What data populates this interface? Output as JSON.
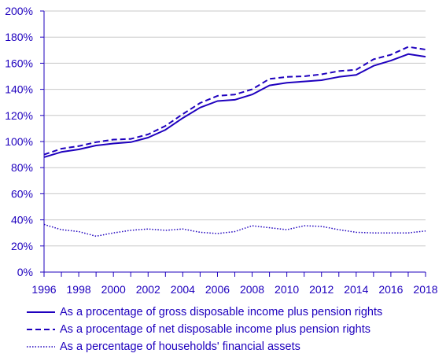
{
  "chart_data": {
    "type": "line",
    "x": [
      1996,
      1997,
      1998,
      1999,
      2000,
      2001,
      2002,
      2003,
      2004,
      2005,
      2006,
      2007,
      2008,
      2009,
      2010,
      2011,
      2012,
      2013,
      2014,
      2015,
      2016,
      2017,
      2018
    ],
    "series": [
      {
        "name": "As a procentage of gross disposable income plus pension rights",
        "style": "solid",
        "values": [
          88,
          92,
          94,
          97,
          98.5,
          99.5,
          103,
          109,
          118,
          126,
          131,
          132,
          136,
          143,
          145,
          146,
          147,
          149.5,
          151,
          158,
          162,
          167,
          165
        ]
      },
      {
        "name": "As a procentage of net disposable income plus pension rights",
        "style": "dashed",
        "values": [
          90,
          94.5,
          96.5,
          99.5,
          101.5,
          102,
          105.5,
          112,
          121,
          129.5,
          135,
          136,
          140,
          148,
          149.5,
          150,
          151.5,
          154,
          155,
          163,
          166.5,
          172.5,
          170.5
        ]
      },
      {
        "name": "As a percentage of households' financial assets",
        "style": "dotted",
        "values": [
          36.5,
          32.5,
          31,
          27.5,
          30,
          32,
          33,
          32,
          33,
          30.5,
          29.5,
          31,
          35.5,
          34,
          32.5,
          35.5,
          35,
          32.5,
          30.5,
          30,
          30,
          30,
          31.5
        ]
      }
    ],
    "y_ticks": [
      "0%",
      "20%",
      "40%",
      "60%",
      "80%",
      "100%",
      "120%",
      "140%",
      "160%",
      "180%",
      "200%"
    ],
    "x_ticks": [
      "1996",
      "1998",
      "2000",
      "2002",
      "2004",
      "2006",
      "2008",
      "2010",
      "2012",
      "2014",
      "2016",
      "2018"
    ],
    "ylim": [
      0,
      200
    ],
    "xlim": [
      1996,
      2018
    ],
    "grid": "horizontal",
    "legend_position": "bottom",
    "colors": {
      "line": "#1e00be",
      "grid": "#c8c8c8",
      "axis": "#1e00be"
    }
  }
}
